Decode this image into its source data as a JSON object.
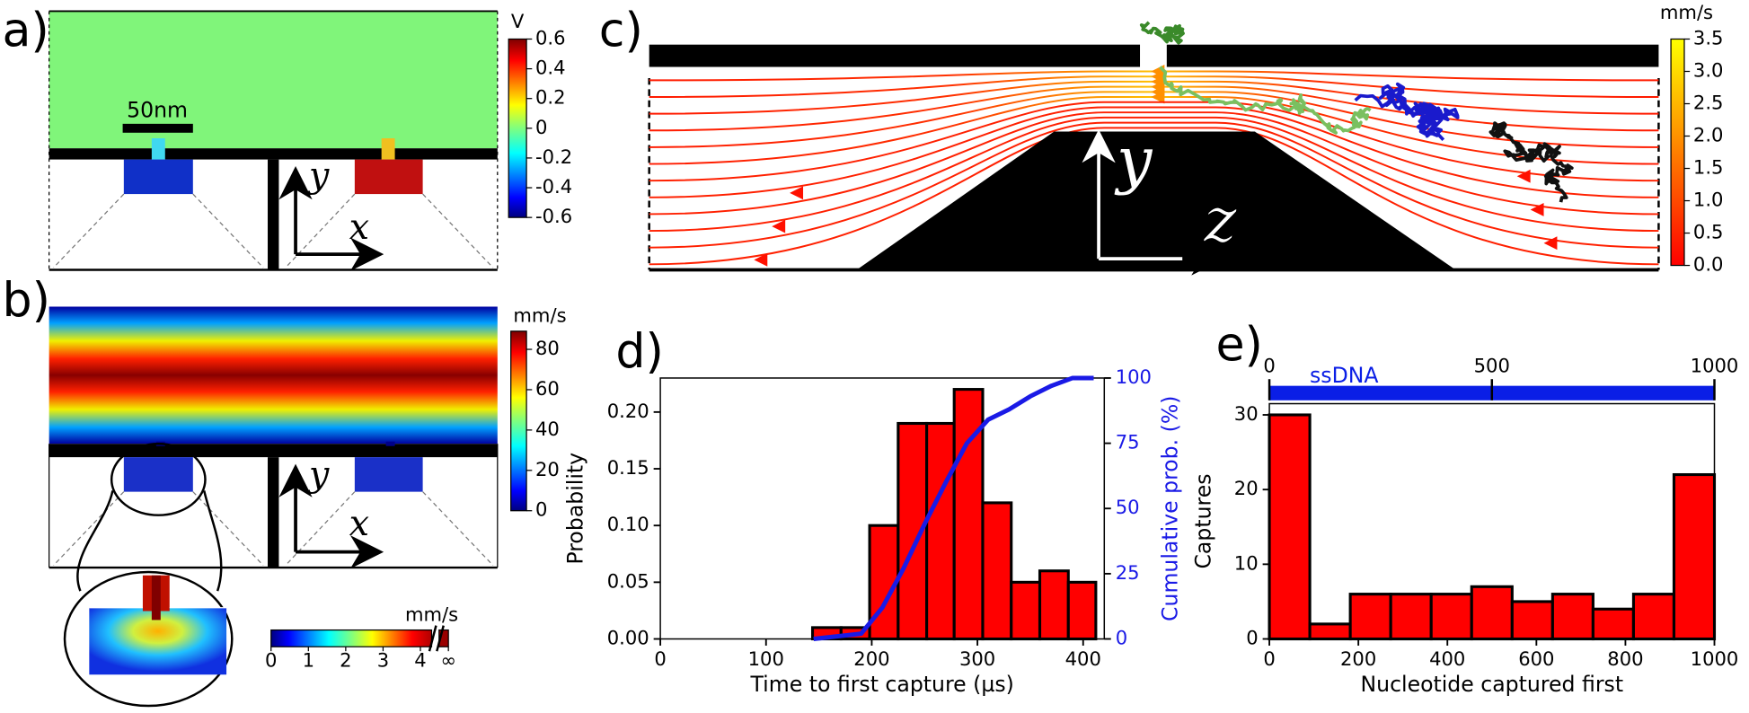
{
  "chart_data": [
    {
      "type": "colorbar",
      "label": "a)",
      "unit": "V",
      "colormap": "jet",
      "ylim": [
        -0.6,
        0.6
      ],
      "yticks": [
        0.6,
        0.4,
        0.2,
        0,
        -0.2,
        -0.4,
        -0.6
      ],
      "annotations": [
        "50nm"
      ],
      "axis_labels": [
        "y",
        "x"
      ]
    },
    {
      "type": "colorbar",
      "label": "b)",
      "unit": "mm/s",
      "colormap": "jet",
      "ylim": [
        0,
        89
      ],
      "yticks": [
        0,
        20,
        40,
        60,
        80
      ],
      "axis_labels": [
        "y",
        "x"
      ],
      "inset": {
        "unit": "mm/s",
        "colormap": "jet",
        "xlim": [
          0,
          4.75
        ],
        "xticks": [
          0,
          1,
          2,
          3,
          4,
          {
            "value": 4.75,
            "label": "∞"
          }
        ]
      }
    },
    {
      "type": "colorbar",
      "label": "c)",
      "unit": "mm/s",
      "colormap": "autumn",
      "ylim": [
        0,
        3.5
      ],
      "yticks": [
        {
          "value": 0,
          "label": "0.0"
        },
        0.5,
        {
          "value": 1,
          "label": "1.0"
        },
        1.5,
        {
          "value": 2,
          "label": "2.0"
        },
        2.5,
        {
          "value": 3,
          "label": "3.0"
        },
        3.5
      ],
      "axis_labels": [
        "y",
        "z"
      ]
    },
    {
      "type": "histogram",
      "label": "d)",
      "xlabel": "Time to first capture (µs)",
      "ylabel": "Probability",
      "y2label": "Cumulative prob. (%)",
      "bins": [
        144,
        171,
        198,
        225,
        252,
        278,
        305,
        332,
        359,
        386,
        412
      ],
      "values": [
        0.01,
        0.01,
        0.1,
        0.19,
        0.19,
        0.22,
        0.12,
        0.05,
        0.06,
        0.05
      ],
      "color": "#ff0000",
      "xlim": [
        0,
        420
      ],
      "xticks": [
        0,
        100,
        200,
        300,
        400
      ],
      "ylim": [
        0,
        0.23
      ],
      "yticks": [
        {
          "value": 0,
          "label": "0.00"
        },
        {
          "value": 0.05,
          "label": "0.05"
        },
        {
          "value": 0.1,
          "label": "0.10"
        },
        {
          "value": 0.15,
          "label": "0.15"
        },
        {
          "value": 0.2,
          "label": "0.20"
        }
      ],
      "y2lim": [
        0,
        100
      ],
      "y2ticks": [
        0,
        25,
        50,
        75,
        100
      ],
      "series": [
        {
          "color": "#1a1ae6",
          "axis": "y2",
          "x": [
            145,
            190,
            210,
            230,
            250,
            270,
            290,
            310,
            330,
            350,
            370,
            390,
            410
          ],
          "values": [
            0,
            2,
            12,
            27,
            44,
            60,
            75,
            84,
            88,
            93,
            97,
            100,
            100
          ]
        }
      ]
    },
    {
      "type": "histogram",
      "label": "e)",
      "xlabel": "Nucleotide captured first",
      "ylabel": "Captures",
      "bins": [
        0,
        90.9,
        181.8,
        272.7,
        363.6,
        454.5,
        545.5,
        636.4,
        727.3,
        818.2,
        909.1,
        1000
      ],
      "values": [
        30,
        2,
        6,
        6,
        6,
        7,
        5,
        6,
        4,
        6,
        22
      ],
      "color": "#ff0000",
      "xlim": [
        0,
        1000
      ],
      "xticks": [
        0,
        200,
        400,
        600,
        800,
        1000
      ],
      "ylim": [
        0,
        31.5
      ],
      "yticks": [
        0,
        10,
        20,
        30
      ],
      "x2label": "ssDNA",
      "x2ticks": [
        0,
        500,
        1000
      ],
      "x2color": "#0a1ee6"
    }
  ]
}
